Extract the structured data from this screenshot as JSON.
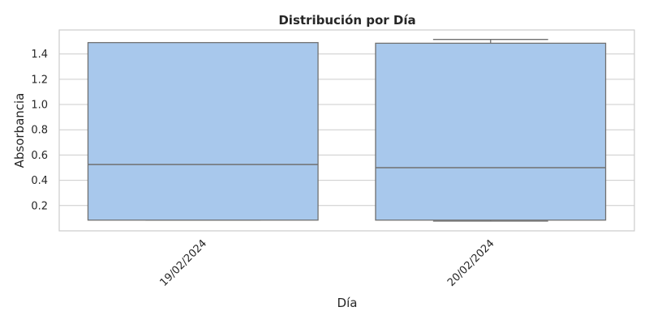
{
  "chart_data": {
    "type": "box",
    "title": "Distribución por Día",
    "xlabel": "Día",
    "ylabel": "Absorbancia",
    "ylim": [
      0.0,
      1.59
    ],
    "yticks": [
      0.2,
      0.4,
      0.6,
      0.8,
      1.0,
      1.2,
      1.4
    ],
    "ytick_labels": [
      "0.2",
      "0.4",
      "0.6",
      "0.8",
      "1.0",
      "1.2",
      "1.4"
    ],
    "grid": true,
    "categories": [
      "19/02/2024",
      "20/02/2024"
    ],
    "boxes": [
      {
        "category": "19/02/2024",
        "whisker_low": 0.085,
        "q1": 0.085,
        "median": 0.525,
        "q3": 1.49,
        "whisker_high": 1.49
      },
      {
        "category": "20/02/2024",
        "whisker_low": 0.077,
        "q1": 0.085,
        "median": 0.5,
        "q3": 1.485,
        "whisker_high": 1.515
      }
    ],
    "box_color": "#a8c8ec",
    "line_color": "#707070"
  }
}
